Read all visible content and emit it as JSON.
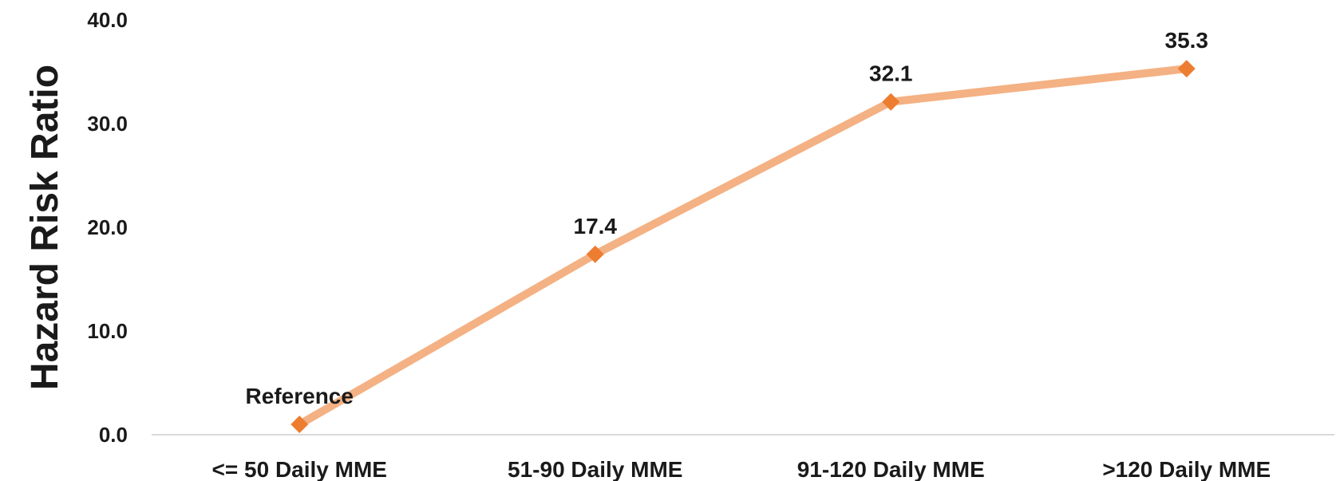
{
  "chart_data": {
    "type": "line",
    "title": "",
    "xlabel": "",
    "ylabel": "Hazard Risk Ratio",
    "ylim": [
      0,
      40
    ],
    "yticks": [
      "0.0",
      "10.0",
      "20.0",
      "30.0",
      "40.0"
    ],
    "categories": [
      "<= 50 Daily MME",
      "51-90 Daily MME",
      "91-120 Daily MME",
      ">120 Daily MME"
    ],
    "series": [
      {
        "values": [
          1.0,
          17.4,
          32.1,
          35.3
        ],
        "data_labels": [
          "Reference",
          "17.4",
          "32.1",
          "35.3"
        ]
      }
    ],
    "grid": false,
    "legend": "none",
    "colors": {
      "line": "#f4b183",
      "marker": "#ed7d31",
      "baseline": "#d9d9d9",
      "text": "#1a1a1a"
    }
  }
}
